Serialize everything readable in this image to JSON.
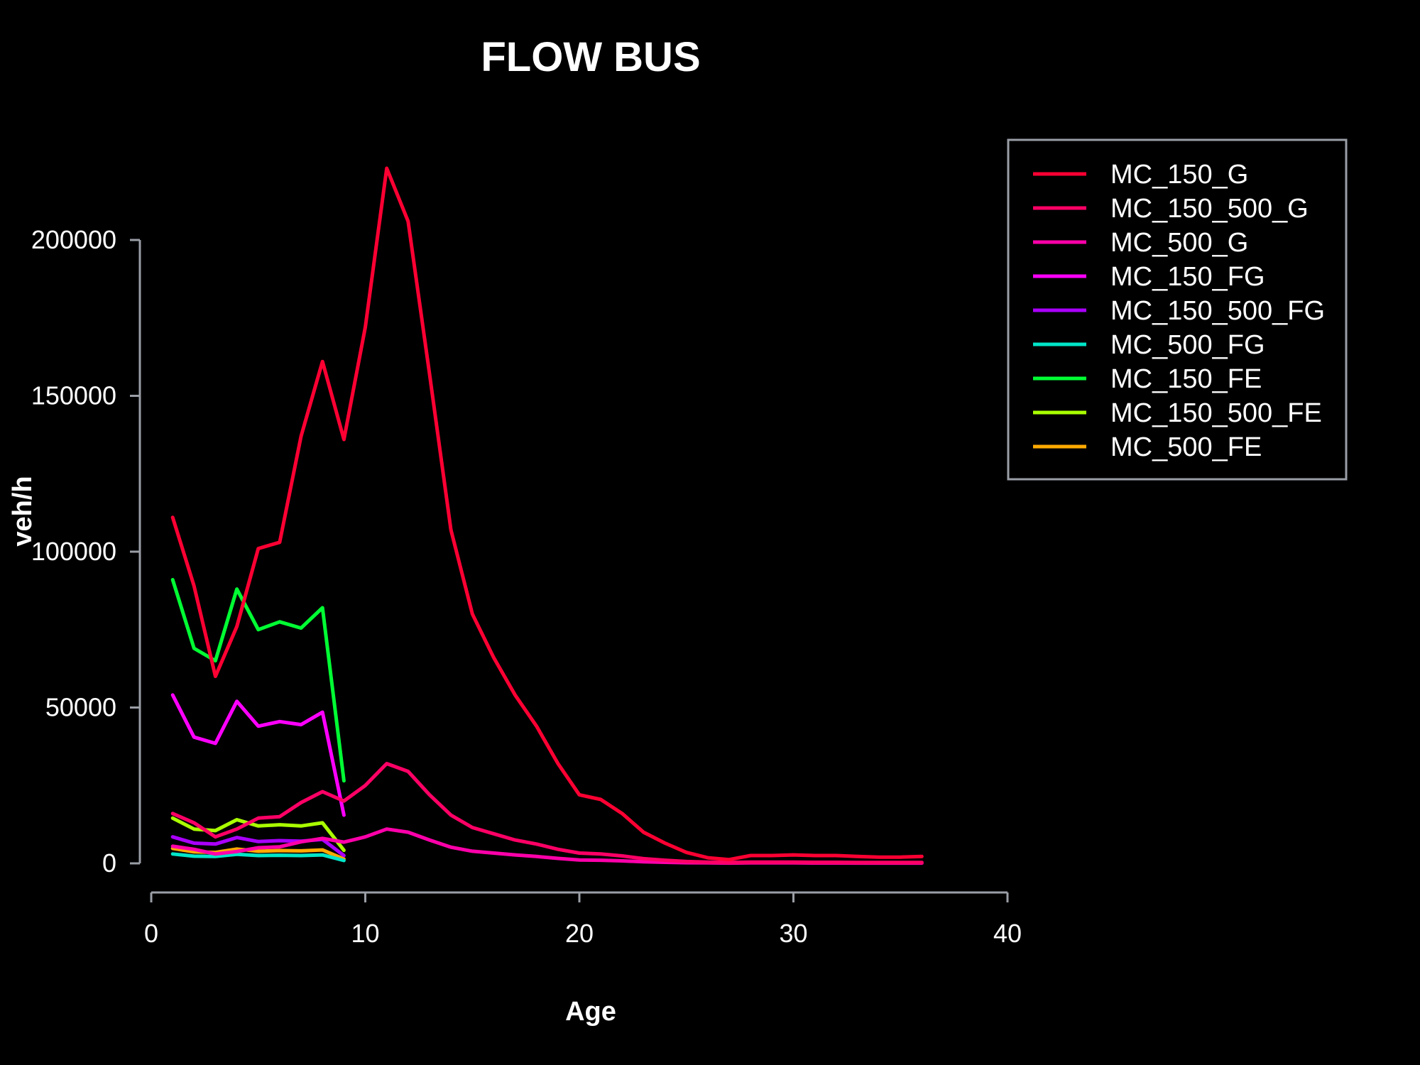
{
  "chart_data": {
    "type": "line",
    "title": "FLOW BUS",
    "xlabel": "Age",
    "ylabel": "veh/h",
    "xlim": [
      0,
      40
    ],
    "ylim": [
      0,
      220000
    ],
    "xticks": [
      0,
      10,
      20,
      30,
      40
    ],
    "yticks": [
      0,
      50000,
      100000,
      150000,
      200000
    ],
    "grid": false,
    "legend_position": "top-right",
    "series": [
      {
        "name": "MC_150_G",
        "color": "#ff0033",
        "x": [
          1,
          2,
          3,
          4,
          5,
          6,
          7,
          8,
          9,
          10,
          11,
          12,
          13,
          14,
          15,
          16,
          17,
          18,
          19,
          20,
          21,
          22,
          23,
          24,
          25,
          26,
          27,
          28,
          29,
          30,
          31,
          32,
          33,
          34,
          35,
          36
        ],
        "y": [
          111000,
          89000,
          60000,
          76000,
          101000,
          103000,
          137000,
          161000,
          136000,
          172000,
          223000,
          206000,
          157000,
          107000,
          80000,
          66000,
          54000,
          44000,
          32000,
          22000,
          20500,
          16000,
          10000,
          6500,
          3500,
          1800,
          1200,
          2500,
          2500,
          2700,
          2500,
          2500,
          2200,
          2000,
          2000,
          2200
        ]
      },
      {
        "name": "MC_150_500_G",
        "color": "#ff0066",
        "x": [
          1,
          2,
          3,
          4,
          5,
          6,
          7,
          8,
          9,
          10,
          11,
          12,
          13,
          14,
          15,
          16,
          17,
          18,
          19,
          20,
          21,
          22,
          23,
          24,
          25,
          26,
          27,
          28,
          29,
          30,
          31,
          32,
          33,
          34,
          35,
          36
        ],
        "y": [
          16000,
          13000,
          8500,
          11000,
          14500,
          15000,
          19500,
          23000,
          20000,
          25000,
          32000,
          29500,
          22000,
          15500,
          11500,
          9500,
          7500,
          6200,
          4500,
          3300,
          3000,
          2400,
          1500,
          1000,
          600,
          400,
          300,
          400,
          400,
          400,
          350,
          350,
          300,
          300,
          300,
          300
        ]
      },
      {
        "name": "MC_500_G",
        "color": "#ff00aa",
        "x": [
          1,
          2,
          3,
          4,
          5,
          6,
          7,
          8,
          9,
          10,
          11,
          12,
          13,
          14,
          15,
          16,
          17,
          18,
          19,
          20,
          21,
          22,
          23,
          24,
          25,
          26,
          27,
          28,
          29,
          30,
          31,
          32,
          33,
          34,
          35,
          36
        ],
        "y": [
          5500,
          4500,
          3000,
          3800,
          5000,
          5300,
          6900,
          8000,
          6800,
          8500,
          11000,
          10000,
          7500,
          5200,
          3900,
          3300,
          2700,
          2200,
          1600,
          1100,
          1000,
          800,
          500,
          350,
          200,
          150,
          100,
          150,
          150,
          150,
          120,
          120,
          100,
          100,
          100,
          100
        ]
      },
      {
        "name": "MC_150_FG",
        "color": "#ff00ff",
        "x": [
          1,
          2,
          3,
          4,
          5,
          6,
          7,
          8,
          9
        ],
        "y": [
          54000,
          40500,
          38500,
          52000,
          44000,
          45500,
          44500,
          48500,
          15500
        ]
      },
      {
        "name": "MC_150_500_FG",
        "color": "#aa00ff",
        "x": [
          1,
          2,
          3,
          4,
          5,
          6,
          7,
          8,
          9
        ],
        "y": [
          8500,
          6500,
          6200,
          8300,
          7000,
          7300,
          7100,
          7700,
          2500
        ]
      },
      {
        "name": "MC_500_FG",
        "color": "#00e5c8",
        "x": [
          1,
          2,
          3,
          4,
          5,
          6,
          7,
          8,
          9
        ],
        "y": [
          3000,
          2300,
          2200,
          2900,
          2500,
          2600,
          2500,
          2700,
          900
        ]
      },
      {
        "name": "MC_150_FE",
        "color": "#00ff33",
        "x": [
          1,
          2,
          3,
          4,
          5,
          6,
          7,
          8,
          9
        ],
        "y": [
          91000,
          69000,
          65000,
          88000,
          75000,
          77500,
          75500,
          82000,
          26500
        ]
      },
      {
        "name": "MC_150_500_FE",
        "color": "#aaff00",
        "x": [
          1,
          2,
          3,
          4,
          5,
          6,
          7,
          8,
          9
        ],
        "y": [
          14500,
          11000,
          10500,
          14000,
          12000,
          12400,
          12000,
          13000,
          4200
        ]
      },
      {
        "name": "MC_500_FE",
        "color": "#ffaa00",
        "x": [
          1,
          2,
          3,
          4,
          5,
          6,
          7,
          8,
          9
        ],
        "y": [
          4800,
          3700,
          3500,
          4600,
          3900,
          4100,
          4000,
          4300,
          1400
        ]
      }
    ]
  }
}
